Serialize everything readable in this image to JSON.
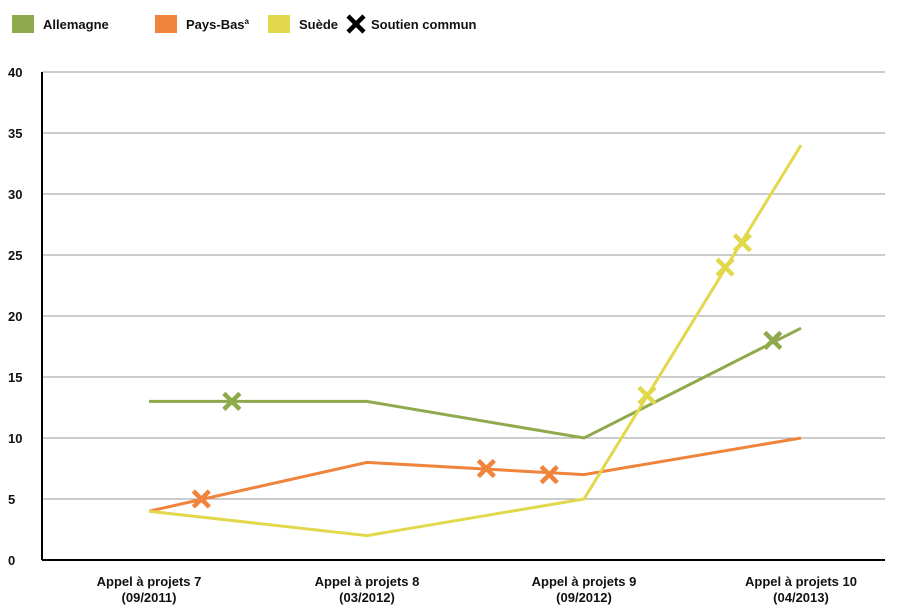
{
  "chart_data": {
    "type": "line",
    "title": "",
    "xlabel": "",
    "ylabel": "",
    "categories": [
      [
        "Appel à projets 7",
        "(09/2011)"
      ],
      [
        "Appel à projets 8",
        "(03/2012)"
      ],
      [
        "Appel à projets 9",
        "(09/2012)"
      ],
      [
        "Appel à projets 10",
        "(04/2013)"
      ]
    ],
    "ylim": [
      0,
      40
    ],
    "yticks": [
      0,
      5,
      10,
      15,
      20,
      25,
      30,
      35,
      40
    ],
    "grid": true,
    "legend_position": "top-left",
    "series": [
      {
        "name": "Allemagne",
        "color": "#8faa4c",
        "values": [
          13,
          13,
          10,
          19
        ]
      },
      {
        "name": "Pays-Bas",
        "superscript": "a",
        "color": "#f0843c",
        "values": [
          4,
          8,
          7,
          10
        ]
      },
      {
        "name": "Suède",
        "color": "#e2d84c",
        "values": [
          4,
          2,
          5,
          34
        ]
      }
    ],
    "legend_extra": {
      "name": "Soutien commun",
      "color": "#000000",
      "marker": "cross"
    },
    "markers": [
      {
        "series": "Allemagne",
        "x": 0.38,
        "y": 13
      },
      {
        "series": "Allemagne",
        "x": 2.87,
        "y": 18
      },
      {
        "series": "Pays-Bas",
        "x": 0.24,
        "y": 5
      },
      {
        "series": "Pays-Bas",
        "x": 1.55,
        "y": 7.5
      },
      {
        "series": "Pays-Bas",
        "x": 1.84,
        "y": 7
      },
      {
        "series": "Suède",
        "x": 2.29,
        "y": 13.5
      },
      {
        "series": "Suède",
        "x": 2.65,
        "y": 24
      },
      {
        "series": "Suède",
        "x": 2.73,
        "y": 26
      }
    ]
  }
}
